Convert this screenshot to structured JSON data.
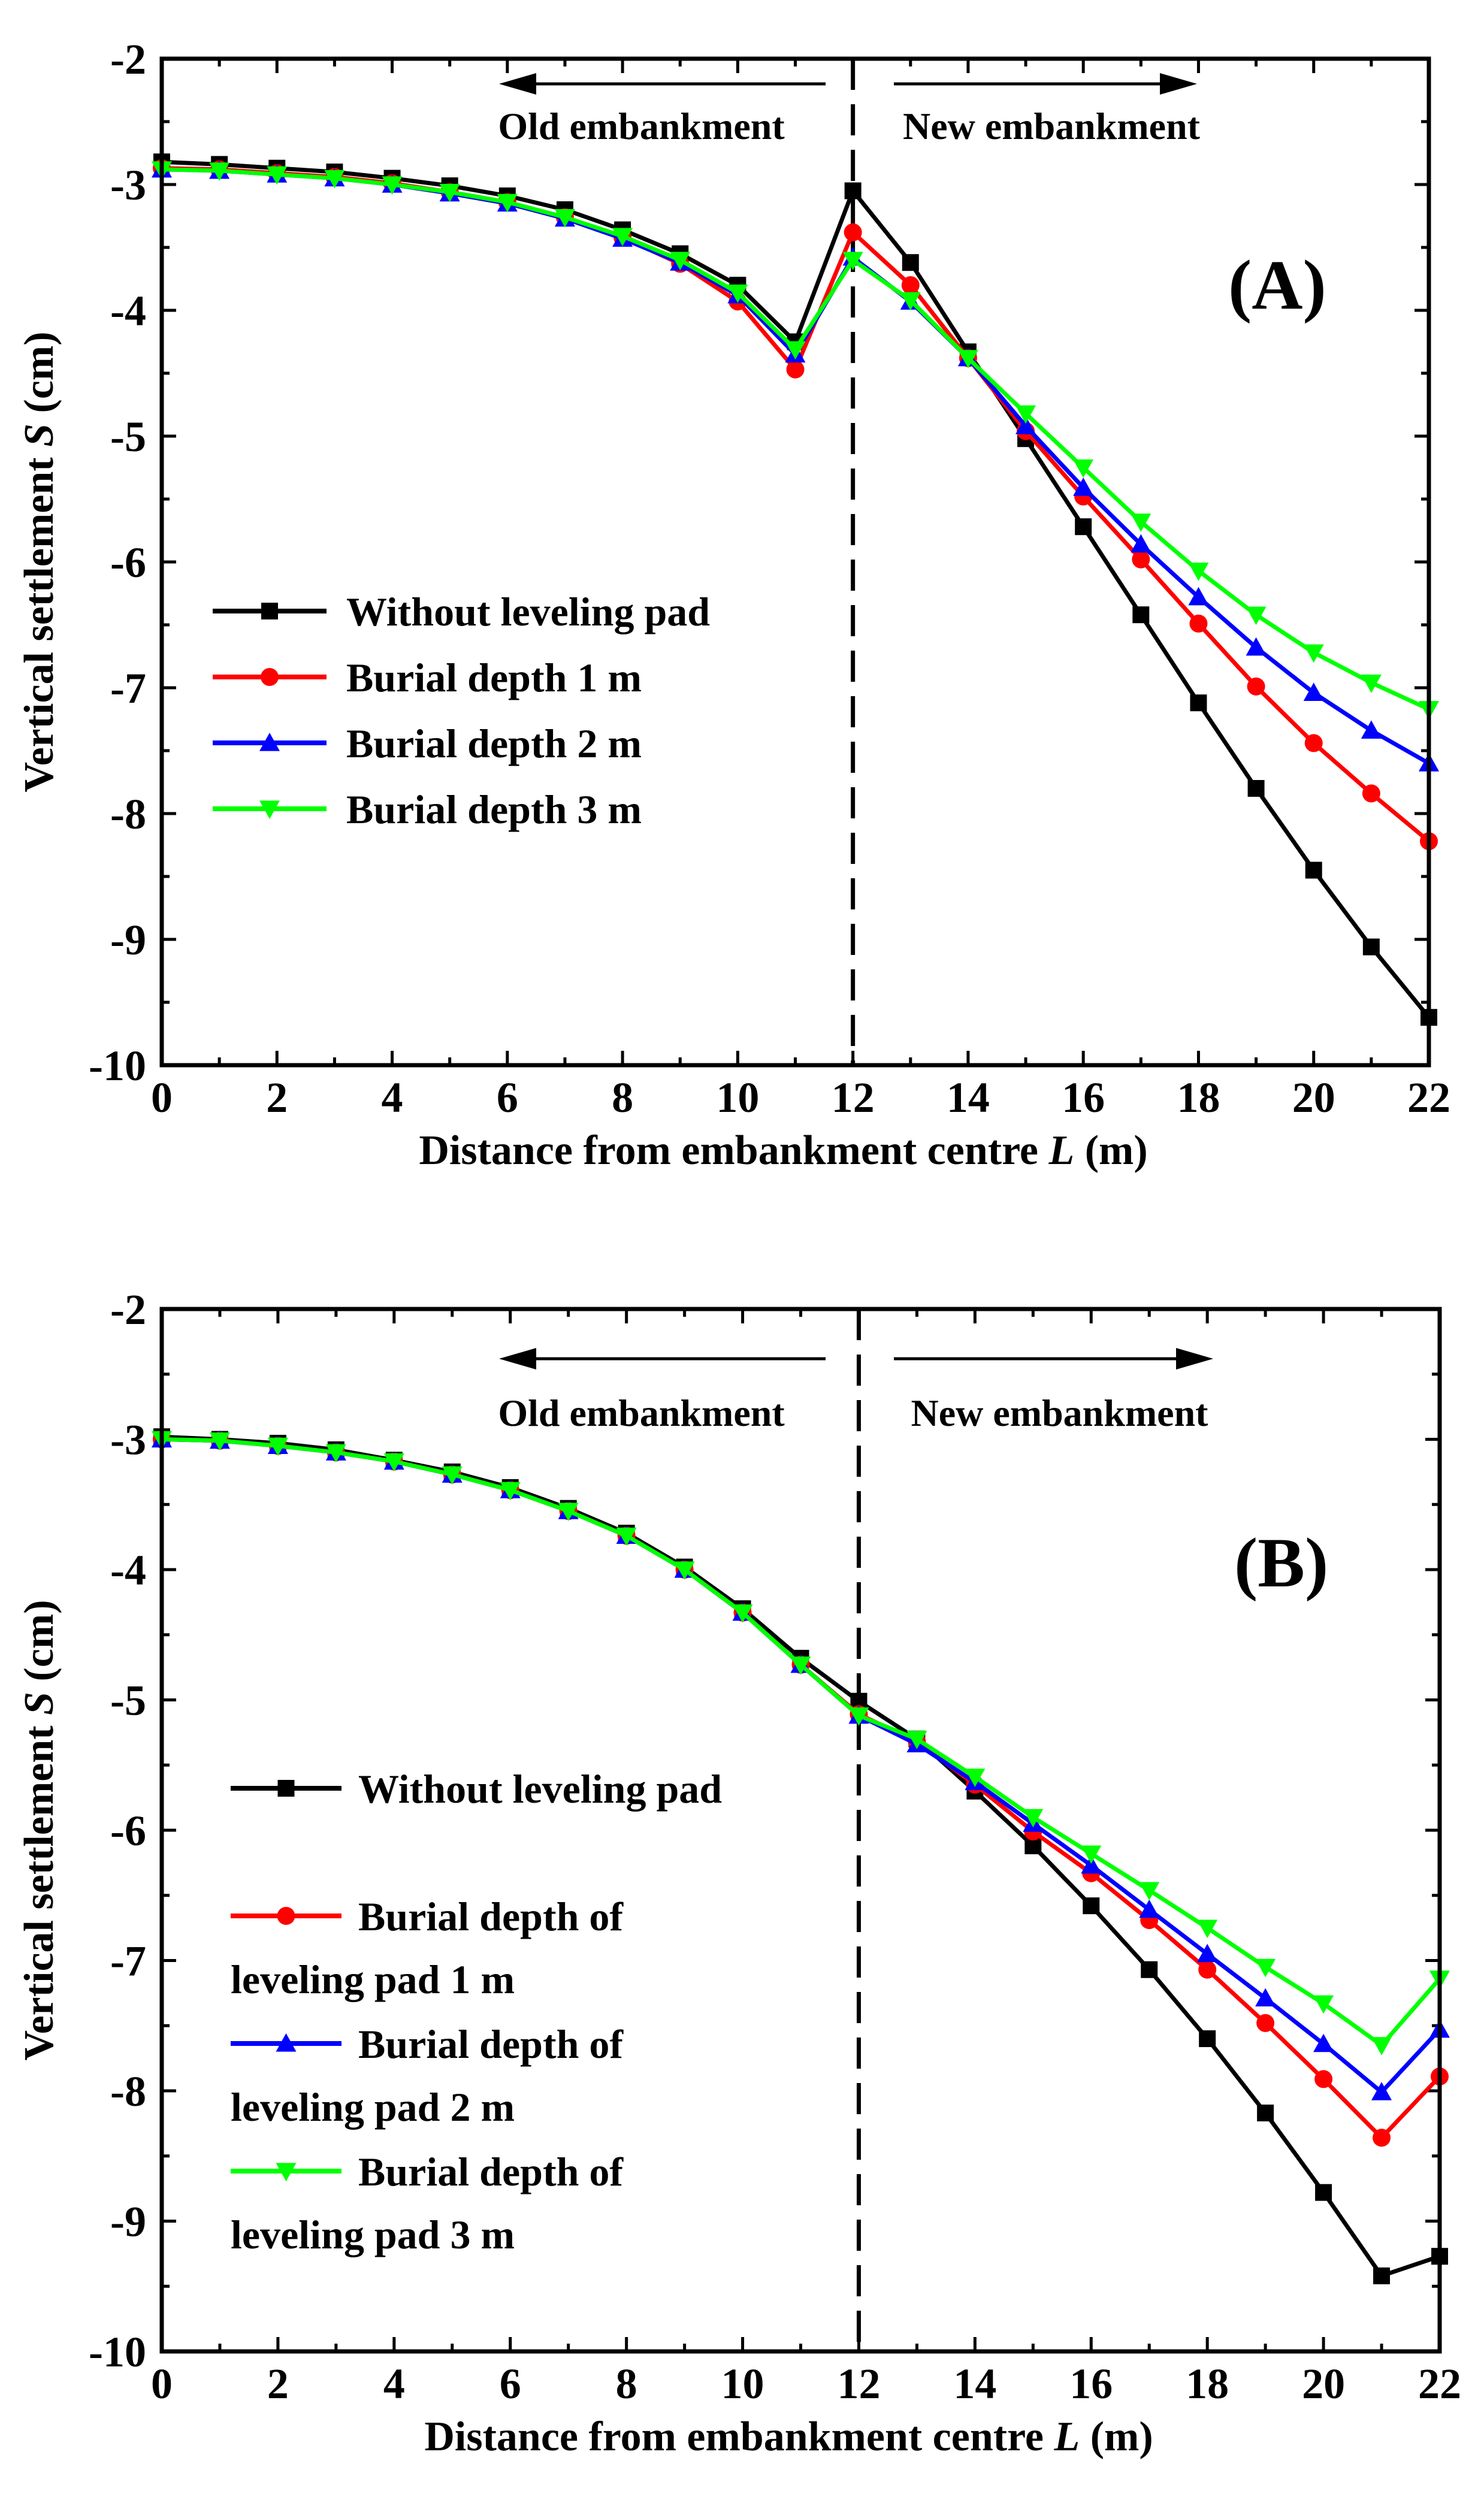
{
  "chart_data": [
    {
      "type": "line",
      "panel_label": "(A)",
      "xlabel_main": "Distance from embankment centre ",
      "xlabel_italic": "L",
      "xlabel_unit": " (m)",
      "ylabel_main": "Vertical settlement  ",
      "ylabel_italic": "S",
      "ylabel_unit": " (cm)",
      "xlim": [
        0,
        22
      ],
      "ylim": [
        -10,
        -2
      ],
      "xticks": [
        "0",
        "2",
        "4",
        "6",
        "8",
        "10",
        "12",
        "14",
        "16",
        "18",
        "20",
        "22"
      ],
      "yticks": [
        "-2",
        "-3",
        "-4",
        "-5",
        "-6",
        "-7",
        "-8",
        "-9",
        "-10"
      ],
      "divider_x": 12,
      "left_region_label": "Old embankment",
      "right_region_label": "New embankment",
      "legend_position": "left-middle",
      "x": [
        0,
        1,
        2,
        3,
        4,
        5,
        6,
        7,
        8,
        9,
        10,
        11,
        12,
        13,
        14,
        15,
        16,
        17,
        18,
        19,
        20,
        21,
        22
      ],
      "series": [
        {
          "name": "Without leveling pad",
          "label_lines": [
            "Without leveling pad"
          ],
          "color": "#000000",
          "marker": "square",
          "values": [
            -2.82,
            -2.84,
            -2.87,
            -2.9,
            -2.95,
            -3.01,
            -3.09,
            -3.2,
            -3.36,
            -3.55,
            -3.8,
            -4.25,
            -3.05,
            -3.62,
            -4.33,
            -5.02,
            -5.72,
            -6.42,
            -7.12,
            -7.8,
            -8.45,
            -9.06,
            -9.62
          ]
        },
        {
          "name": "Burial depth 1 m",
          "label_lines": [
            "Burial depth 1 m"
          ],
          "color": "#ff0000",
          "marker": "circle",
          "values": [
            -2.87,
            -2.88,
            -2.91,
            -2.94,
            -2.99,
            -3.06,
            -3.14,
            -3.26,
            -3.42,
            -3.63,
            -3.93,
            -4.47,
            -3.38,
            -3.8,
            -4.38,
            -4.96,
            -5.48,
            -5.98,
            -6.49,
            -6.99,
            -7.44,
            -7.84,
            -8.22
          ]
        },
        {
          "name": "Burial depth 2 m",
          "label_lines": [
            "Burial depth 2 m"
          ],
          "color": "#0000ff",
          "marker": "triangle-up",
          "values": [
            -2.88,
            -2.89,
            -2.92,
            -2.95,
            -3.0,
            -3.07,
            -3.15,
            -3.27,
            -3.43,
            -3.62,
            -3.88,
            -4.35,
            -3.58,
            -3.93,
            -4.38,
            -4.92,
            -5.41,
            -5.86,
            -6.28,
            -6.68,
            -7.04,
            -7.34,
            -7.6
          ]
        },
        {
          "name": "Burial depth 3 m",
          "label_lines": [
            "Burial depth 3 m"
          ],
          "color": "#00ff00",
          "marker": "triangle-down",
          "values": [
            -2.88,
            -2.89,
            -2.92,
            -2.95,
            -3.0,
            -3.06,
            -3.14,
            -3.26,
            -3.41,
            -3.6,
            -3.86,
            -4.31,
            -3.6,
            -3.92,
            -4.38,
            -4.82,
            -5.25,
            -5.68,
            -6.07,
            -6.42,
            -6.72,
            -6.96,
            -7.17
          ]
        }
      ]
    },
    {
      "type": "line",
      "panel_label": "(B)",
      "xlabel_main": "Distance from embankment centre ",
      "xlabel_italic": "L",
      "xlabel_unit": " (m)",
      "ylabel_main": "Vertical settlement  ",
      "ylabel_italic": "S",
      "ylabel_unit": " (cm)",
      "xlim": [
        0,
        22
      ],
      "ylim": [
        -10,
        -2
      ],
      "xticks": [
        "0",
        "2",
        "4",
        "6",
        "8",
        "10",
        "12",
        "14",
        "16",
        "18",
        "20",
        "22"
      ],
      "yticks": [
        "-2",
        "-3",
        "-4",
        "-5",
        "-6",
        "-7",
        "-8",
        "-9",
        "-10"
      ],
      "divider_x": 12,
      "left_region_label": "Old embankment",
      "right_region_label": "New embankment",
      "legend_position": "left-bottom",
      "x": [
        0,
        1,
        2,
        3,
        4,
        5,
        6,
        7,
        8,
        9,
        10,
        11,
        12,
        13,
        14,
        15,
        16,
        17,
        18,
        19,
        20,
        21,
        22
      ],
      "series": [
        {
          "name": "Without leveling pad",
          "label_lines": [
            "Without leveling pad"
          ],
          "color": "#000000",
          "marker": "square",
          "values": [
            -2.98,
            -3.0,
            -3.03,
            -3.08,
            -3.16,
            -3.25,
            -3.37,
            -3.53,
            -3.72,
            -3.98,
            -4.3,
            -4.68,
            -5.01,
            -5.3,
            -5.7,
            -6.12,
            -6.58,
            -7.07,
            -7.6,
            -8.17,
            -8.78,
            -9.42,
            -9.27
          ]
        },
        {
          "name": "Burial depth of leveling pad 1 m",
          "label_lines": [
            "Burial depth of",
            "leveling pad 1 m"
          ],
          "color": "#ff0000",
          "marker": "circle",
          "values": [
            -3.0,
            -3.01,
            -3.05,
            -3.1,
            -3.17,
            -3.27,
            -3.39,
            -3.55,
            -3.74,
            -4.0,
            -4.33,
            -4.73,
            -5.11,
            -5.32,
            -5.65,
            -6.01,
            -6.33,
            -6.69,
            -7.07,
            -7.48,
            -7.91,
            -8.36,
            -7.89
          ]
        },
        {
          "name": "Burial depth of leveling pad 2 m",
          "label_lines": [
            "Burial depth of",
            "leveling pad 2 m"
          ],
          "color": "#0000ff",
          "marker": "triangle-up",
          "values": [
            -3.0,
            -3.01,
            -3.05,
            -3.1,
            -3.17,
            -3.27,
            -3.39,
            -3.55,
            -3.74,
            -4.0,
            -4.33,
            -4.73,
            -5.12,
            -5.34,
            -5.63,
            -5.95,
            -6.27,
            -6.61,
            -6.95,
            -7.29,
            -7.64,
            -8.01,
            -7.53
          ]
        },
        {
          "name": "Burial depth of leveling pad 3 m",
          "label_lines": [
            "Burial depth of",
            "leveling pad 3 m"
          ],
          "color": "#00ff00",
          "marker": "triangle-down",
          "values": [
            -3.0,
            -3.01,
            -3.05,
            -3.1,
            -3.17,
            -3.27,
            -3.39,
            -3.55,
            -3.74,
            -4.0,
            -4.33,
            -4.73,
            -5.12,
            -5.3,
            -5.59,
            -5.9,
            -6.18,
            -6.46,
            -6.75,
            -7.05,
            -7.33,
            -7.65,
            -7.14
          ]
        }
      ]
    }
  ]
}
